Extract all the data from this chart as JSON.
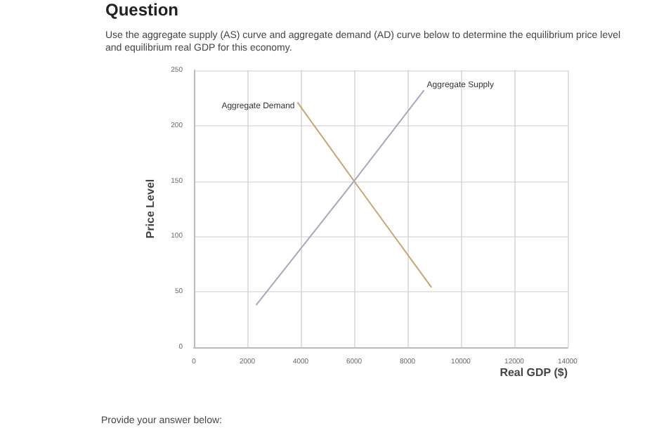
{
  "chart_data": {
    "type": "line",
    "title": "Question",
    "subtitle": "Use the aggregate supply (AS) curve and aggregate demand (AD) curve below to determine the equilibrium price level and equilibrium real GDP for this economy.",
    "xlabel": "Real GDP ($)",
    "ylabel": "Price Level",
    "annotations": [
      "Provide your answer below:"
    ],
    "series": [
      {
        "name": "Aggregate Demand",
        "color": "#c9a574",
        "x": [
          3880,
          6000,
          8900
        ],
        "values": [
          221,
          150,
          54
        ]
      },
      {
        "name": "Aggregate Supply",
        "color": "#a3a9bf",
        "x": [
          2330,
          6000,
          8620
        ],
        "values": [
          38,
          150,
          232
        ]
      }
    ],
    "xlim": [
      0,
      14000
    ],
    "xticks": [
      0,
      2000,
      4000,
      6000,
      8000,
      10000,
      12000,
      14000
    ],
    "ylim": [
      0,
      250
    ],
    "yticks": [
      0,
      50,
      100,
      150,
      200,
      250
    ],
    "grid": true,
    "marker": "none",
    "line_style": "solid",
    "legend": false
  }
}
